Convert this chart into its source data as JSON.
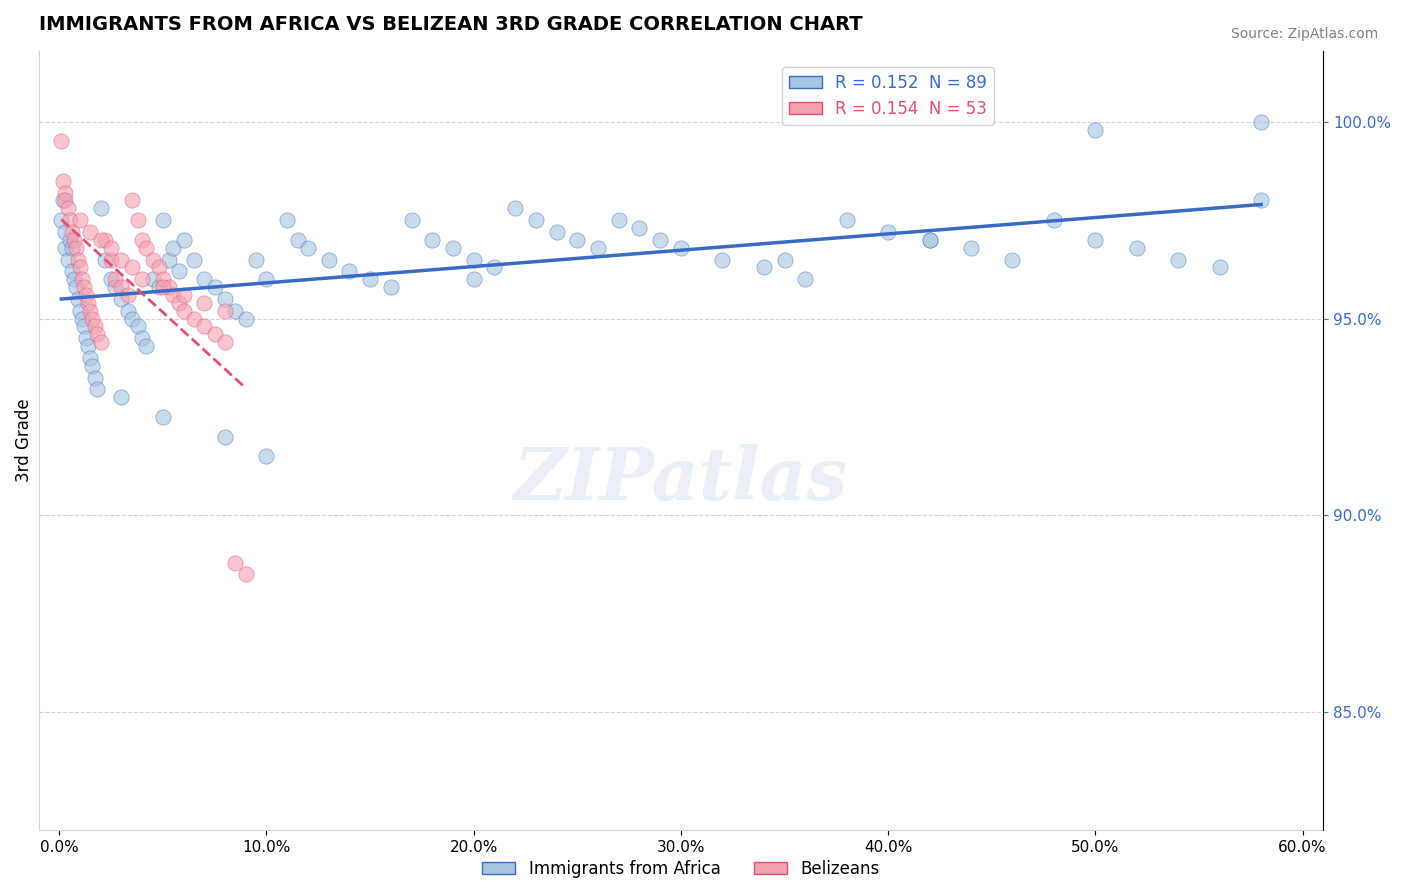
{
  "title": "IMMIGRANTS FROM AFRICA VS BELIZEAN 3RD GRADE CORRELATION CHART",
  "source": "Source: ZipAtlas.com",
  "xlabel": "",
  "ylabel": "3rd Grade",
  "xlim": [
    -0.01,
    0.61
  ],
  "ylim": [
    0.82,
    1.018
  ],
  "yticks": [
    0.85,
    0.9,
    0.95,
    1.0
  ],
  "ytick_labels": [
    "85.0%",
    "90.0%",
    "95.0%",
    "100.0%"
  ],
  "xticks": [
    0.0,
    0.1,
    0.2,
    0.3,
    0.4,
    0.5,
    0.6
  ],
  "xtick_labels": [
    "0.0%",
    "10.0%",
    "20.0%",
    "30.0%",
    "40.0%",
    "50.0%",
    "60.0%"
  ],
  "blue_R": 0.152,
  "blue_N": 89,
  "pink_R": 0.154,
  "pink_N": 53,
  "blue_color": "#a8c4e0",
  "pink_color": "#f4a0b0",
  "blue_line_color": "#3a6bc4",
  "pink_line_color": "#e05070",
  "legend_label_blue": "Immigrants from Africa",
  "legend_label_pink": "Belizeans",
  "watermark": "ZIPatlas",
  "blue_x": [
    0.001,
    0.002,
    0.003,
    0.003,
    0.004,
    0.005,
    0.006,
    0.006,
    0.007,
    0.008,
    0.009,
    0.01,
    0.011,
    0.012,
    0.013,
    0.014,
    0.015,
    0.016,
    0.017,
    0.018,
    0.02,
    0.022,
    0.025,
    0.027,
    0.03,
    0.033,
    0.035,
    0.038,
    0.04,
    0.042,
    0.045,
    0.048,
    0.05,
    0.053,
    0.055,
    0.058,
    0.06,
    0.065,
    0.07,
    0.075,
    0.08,
    0.085,
    0.09,
    0.095,
    0.1,
    0.11,
    0.115,
    0.12,
    0.13,
    0.14,
    0.15,
    0.16,
    0.17,
    0.18,
    0.19,
    0.2,
    0.21,
    0.22,
    0.23,
    0.24,
    0.25,
    0.26,
    0.27,
    0.28,
    0.29,
    0.3,
    0.32,
    0.34,
    0.36,
    0.38,
    0.4,
    0.42,
    0.44,
    0.46,
    0.48,
    0.5,
    0.52,
    0.54,
    0.56,
    0.58,
    0.03,
    0.05,
    0.08,
    0.1,
    0.2,
    0.35,
    0.42,
    0.5,
    0.58
  ],
  "blue_y": [
    0.975,
    0.98,
    0.972,
    0.968,
    0.965,
    0.97,
    0.968,
    0.962,
    0.96,
    0.958,
    0.955,
    0.952,
    0.95,
    0.948,
    0.945,
    0.943,
    0.94,
    0.938,
    0.935,
    0.932,
    0.978,
    0.965,
    0.96,
    0.958,
    0.955,
    0.952,
    0.95,
    0.948,
    0.945,
    0.943,
    0.96,
    0.958,
    0.975,
    0.965,
    0.968,
    0.962,
    0.97,
    0.965,
    0.96,
    0.958,
    0.955,
    0.952,
    0.95,
    0.965,
    0.96,
    0.975,
    0.97,
    0.968,
    0.965,
    0.962,
    0.96,
    0.958,
    0.975,
    0.97,
    0.968,
    0.965,
    0.963,
    0.978,
    0.975,
    0.972,
    0.97,
    0.968,
    0.975,
    0.973,
    0.97,
    0.968,
    0.965,
    0.963,
    0.96,
    0.975,
    0.972,
    0.97,
    0.968,
    0.965,
    0.975,
    0.97,
    0.968,
    0.965,
    0.963,
    0.98,
    0.93,
    0.925,
    0.92,
    0.915,
    0.96,
    0.965,
    0.97,
    0.998,
    1.0
  ],
  "pink_x": [
    0.001,
    0.002,
    0.003,
    0.003,
    0.004,
    0.005,
    0.006,
    0.007,
    0.008,
    0.009,
    0.01,
    0.011,
    0.012,
    0.013,
    0.014,
    0.015,
    0.016,
    0.017,
    0.018,
    0.02,
    0.022,
    0.025,
    0.027,
    0.03,
    0.033,
    0.035,
    0.038,
    0.04,
    0.042,
    0.045,
    0.048,
    0.05,
    0.053,
    0.055,
    0.058,
    0.06,
    0.065,
    0.07,
    0.075,
    0.08,
    0.085,
    0.09,
    0.01,
    0.015,
    0.02,
    0.025,
    0.03,
    0.035,
    0.04,
    0.05,
    0.06,
    0.07,
    0.08
  ],
  "pink_y": [
    0.995,
    0.985,
    0.982,
    0.98,
    0.978,
    0.975,
    0.972,
    0.97,
    0.968,
    0.965,
    0.963,
    0.96,
    0.958,
    0.956,
    0.954,
    0.952,
    0.95,
    0.948,
    0.946,
    0.944,
    0.97,
    0.965,
    0.96,
    0.958,
    0.956,
    0.98,
    0.975,
    0.97,
    0.968,
    0.965,
    0.963,
    0.96,
    0.958,
    0.956,
    0.954,
    0.952,
    0.95,
    0.948,
    0.946,
    0.944,
    0.888,
    0.885,
    0.975,
    0.972,
    0.97,
    0.968,
    0.965,
    0.963,
    0.96,
    0.958,
    0.956,
    0.954,
    0.952
  ]
}
